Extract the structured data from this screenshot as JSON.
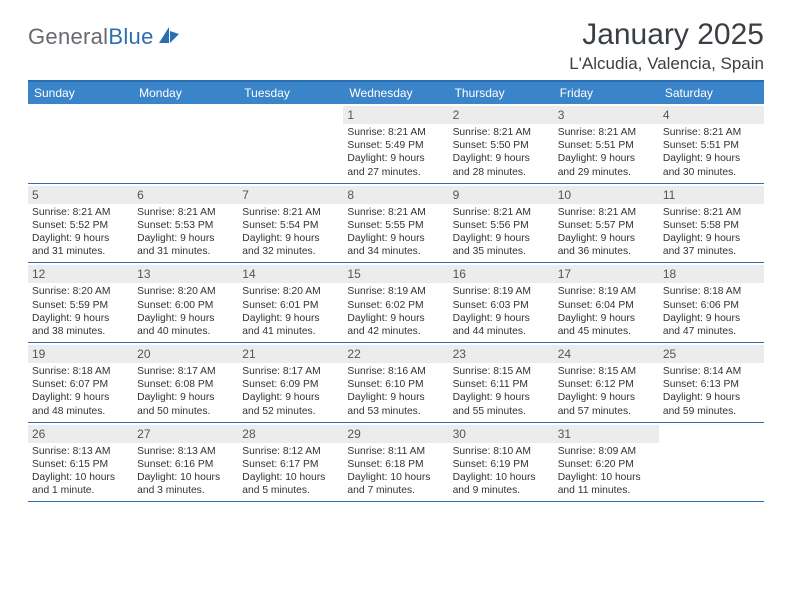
{
  "brand": {
    "name_gray": "General",
    "name_blue": "Blue"
  },
  "title": "January 2025",
  "location": "L'Alcudia, Valencia, Spain",
  "colors": {
    "header_bg": "#3a84c9",
    "border": "#2b6fb3",
    "daynum_bg": "#ececec",
    "text": "#333333",
    "logo_gray": "#666a6e",
    "logo_blue": "#2b6fb3"
  },
  "day_names": [
    "Sunday",
    "Monday",
    "Tuesday",
    "Wednesday",
    "Thursday",
    "Friday",
    "Saturday"
  ],
  "weeks": [
    [
      {
        "blank": true
      },
      {
        "blank": true
      },
      {
        "blank": true
      },
      {
        "n": "1",
        "sr": "Sunrise: 8:21 AM",
        "ss": "Sunset: 5:49 PM",
        "d1": "Daylight: 9 hours",
        "d2": "and 27 minutes."
      },
      {
        "n": "2",
        "sr": "Sunrise: 8:21 AM",
        "ss": "Sunset: 5:50 PM",
        "d1": "Daylight: 9 hours",
        "d2": "and 28 minutes."
      },
      {
        "n": "3",
        "sr": "Sunrise: 8:21 AM",
        "ss": "Sunset: 5:51 PM",
        "d1": "Daylight: 9 hours",
        "d2": "and 29 minutes."
      },
      {
        "n": "4",
        "sr": "Sunrise: 8:21 AM",
        "ss": "Sunset: 5:51 PM",
        "d1": "Daylight: 9 hours",
        "d2": "and 30 minutes."
      }
    ],
    [
      {
        "n": "5",
        "sr": "Sunrise: 8:21 AM",
        "ss": "Sunset: 5:52 PM",
        "d1": "Daylight: 9 hours",
        "d2": "and 31 minutes."
      },
      {
        "n": "6",
        "sr": "Sunrise: 8:21 AM",
        "ss": "Sunset: 5:53 PM",
        "d1": "Daylight: 9 hours",
        "d2": "and 31 minutes."
      },
      {
        "n": "7",
        "sr": "Sunrise: 8:21 AM",
        "ss": "Sunset: 5:54 PM",
        "d1": "Daylight: 9 hours",
        "d2": "and 32 minutes."
      },
      {
        "n": "8",
        "sr": "Sunrise: 8:21 AM",
        "ss": "Sunset: 5:55 PM",
        "d1": "Daylight: 9 hours",
        "d2": "and 34 minutes."
      },
      {
        "n": "9",
        "sr": "Sunrise: 8:21 AM",
        "ss": "Sunset: 5:56 PM",
        "d1": "Daylight: 9 hours",
        "d2": "and 35 minutes."
      },
      {
        "n": "10",
        "sr": "Sunrise: 8:21 AM",
        "ss": "Sunset: 5:57 PM",
        "d1": "Daylight: 9 hours",
        "d2": "and 36 minutes."
      },
      {
        "n": "11",
        "sr": "Sunrise: 8:21 AM",
        "ss": "Sunset: 5:58 PM",
        "d1": "Daylight: 9 hours",
        "d2": "and 37 minutes."
      }
    ],
    [
      {
        "n": "12",
        "sr": "Sunrise: 8:20 AM",
        "ss": "Sunset: 5:59 PM",
        "d1": "Daylight: 9 hours",
        "d2": "and 38 minutes."
      },
      {
        "n": "13",
        "sr": "Sunrise: 8:20 AM",
        "ss": "Sunset: 6:00 PM",
        "d1": "Daylight: 9 hours",
        "d2": "and 40 minutes."
      },
      {
        "n": "14",
        "sr": "Sunrise: 8:20 AM",
        "ss": "Sunset: 6:01 PM",
        "d1": "Daylight: 9 hours",
        "d2": "and 41 minutes."
      },
      {
        "n": "15",
        "sr": "Sunrise: 8:19 AM",
        "ss": "Sunset: 6:02 PM",
        "d1": "Daylight: 9 hours",
        "d2": "and 42 minutes."
      },
      {
        "n": "16",
        "sr": "Sunrise: 8:19 AM",
        "ss": "Sunset: 6:03 PM",
        "d1": "Daylight: 9 hours",
        "d2": "and 44 minutes."
      },
      {
        "n": "17",
        "sr": "Sunrise: 8:19 AM",
        "ss": "Sunset: 6:04 PM",
        "d1": "Daylight: 9 hours",
        "d2": "and 45 minutes."
      },
      {
        "n": "18",
        "sr": "Sunrise: 8:18 AM",
        "ss": "Sunset: 6:06 PM",
        "d1": "Daylight: 9 hours",
        "d2": "and 47 minutes."
      }
    ],
    [
      {
        "n": "19",
        "sr": "Sunrise: 8:18 AM",
        "ss": "Sunset: 6:07 PM",
        "d1": "Daylight: 9 hours",
        "d2": "and 48 minutes."
      },
      {
        "n": "20",
        "sr": "Sunrise: 8:17 AM",
        "ss": "Sunset: 6:08 PM",
        "d1": "Daylight: 9 hours",
        "d2": "and 50 minutes."
      },
      {
        "n": "21",
        "sr": "Sunrise: 8:17 AM",
        "ss": "Sunset: 6:09 PM",
        "d1": "Daylight: 9 hours",
        "d2": "and 52 minutes."
      },
      {
        "n": "22",
        "sr": "Sunrise: 8:16 AM",
        "ss": "Sunset: 6:10 PM",
        "d1": "Daylight: 9 hours",
        "d2": "and 53 minutes."
      },
      {
        "n": "23",
        "sr": "Sunrise: 8:15 AM",
        "ss": "Sunset: 6:11 PM",
        "d1": "Daylight: 9 hours",
        "d2": "and 55 minutes."
      },
      {
        "n": "24",
        "sr": "Sunrise: 8:15 AM",
        "ss": "Sunset: 6:12 PM",
        "d1": "Daylight: 9 hours",
        "d2": "and 57 minutes."
      },
      {
        "n": "25",
        "sr": "Sunrise: 8:14 AM",
        "ss": "Sunset: 6:13 PM",
        "d1": "Daylight: 9 hours",
        "d2": "and 59 minutes."
      }
    ],
    [
      {
        "n": "26",
        "sr": "Sunrise: 8:13 AM",
        "ss": "Sunset: 6:15 PM",
        "d1": "Daylight: 10 hours",
        "d2": "and 1 minute."
      },
      {
        "n": "27",
        "sr": "Sunrise: 8:13 AM",
        "ss": "Sunset: 6:16 PM",
        "d1": "Daylight: 10 hours",
        "d2": "and 3 minutes."
      },
      {
        "n": "28",
        "sr": "Sunrise: 8:12 AM",
        "ss": "Sunset: 6:17 PM",
        "d1": "Daylight: 10 hours",
        "d2": "and 5 minutes."
      },
      {
        "n": "29",
        "sr": "Sunrise: 8:11 AM",
        "ss": "Sunset: 6:18 PM",
        "d1": "Daylight: 10 hours",
        "d2": "and 7 minutes."
      },
      {
        "n": "30",
        "sr": "Sunrise: 8:10 AM",
        "ss": "Sunset: 6:19 PM",
        "d1": "Daylight: 10 hours",
        "d2": "and 9 minutes."
      },
      {
        "n": "31",
        "sr": "Sunrise: 8:09 AM",
        "ss": "Sunset: 6:20 PM",
        "d1": "Daylight: 10 hours",
        "d2": "and 11 minutes."
      },
      {
        "blank": true
      }
    ]
  ]
}
